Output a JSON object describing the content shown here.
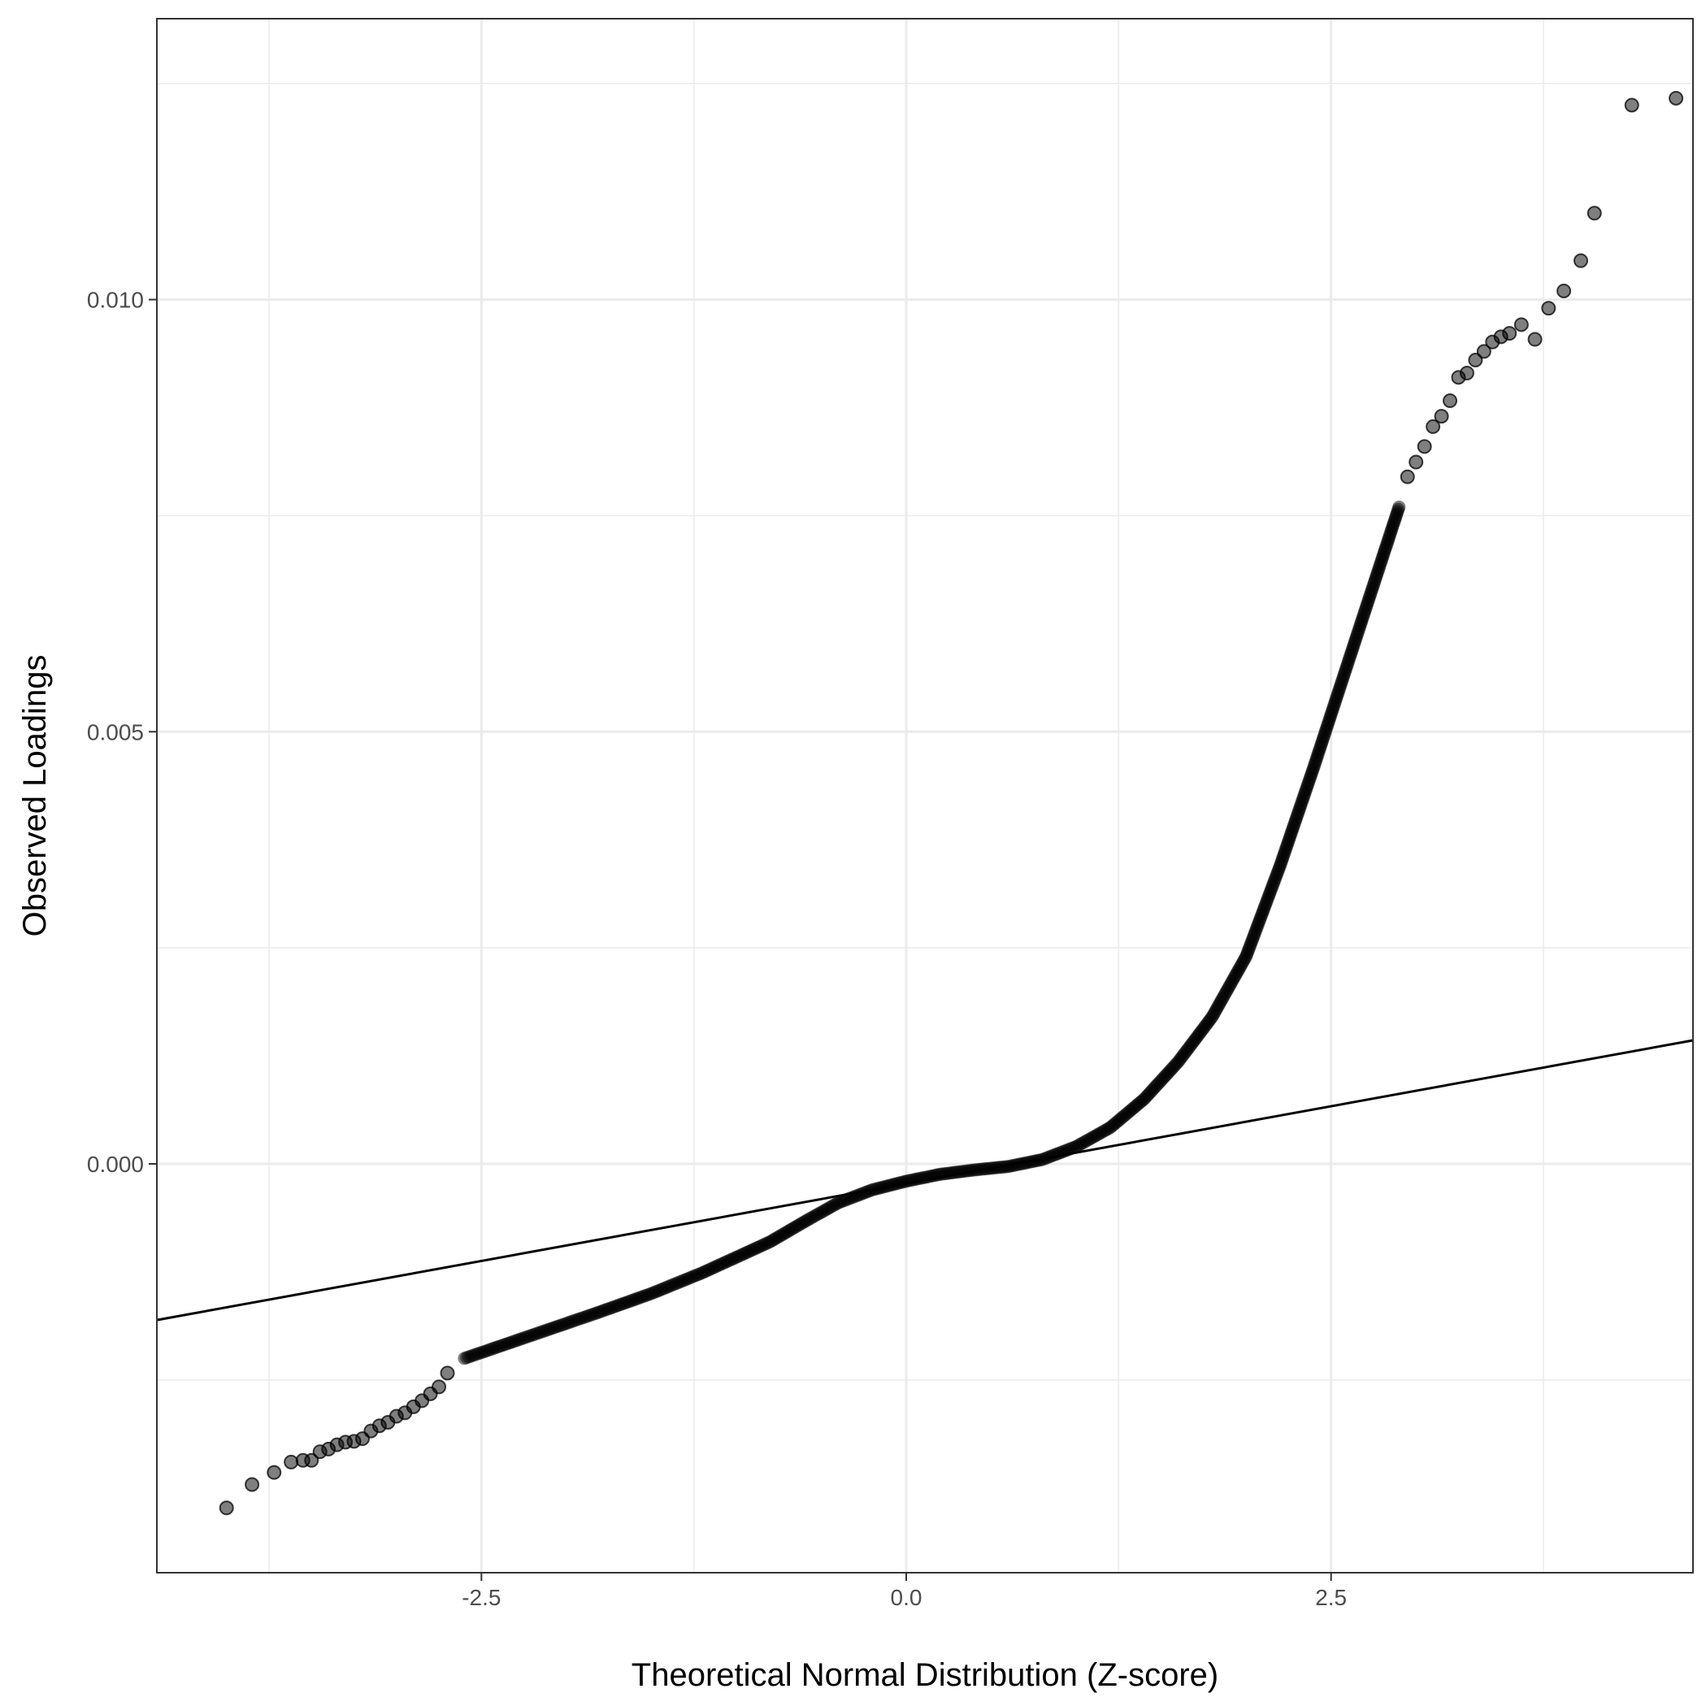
{
  "chart_data": {
    "type": "scatter",
    "title": "",
    "xlabel": "Theoretical Normal Distribution (Z-score)",
    "ylabel": "Observed Loadings",
    "xlim": [
      -4.41,
      4.63
    ],
    "ylim": [
      -0.00473,
      0.01325
    ],
    "x_ticks": [
      {
        "value": -2.5,
        "label": "-2.5"
      },
      {
        "value": 0.0,
        "label": "0.0"
      },
      {
        "value": 2.5,
        "label": "2.5"
      }
    ],
    "y_ticks": [
      {
        "value": 0.0,
        "label": "0.000"
      },
      {
        "value": 0.005,
        "label": "0.005"
      },
      {
        "value": 0.01,
        "label": "0.010"
      }
    ],
    "x_minor": [
      -3.75,
      -1.25,
      1.25,
      3.75
    ],
    "y_minor": [
      -0.0025,
      0.0025,
      0.0075,
      0.0125
    ],
    "grid": true,
    "point_color": "#000000",
    "point_alpha": 0.5,
    "line_color": "#000000",
    "reference_line": {
      "slope": 0.000358,
      "intercept": -0.000228
    },
    "curve": [
      [
        -2.6,
        -0.00225
      ],
      [
        -2.2,
        -0.00198
      ],
      [
        -1.8,
        -0.00171
      ],
      [
        -1.5,
        -0.0015
      ],
      [
        -1.2,
        -0.00126
      ],
      [
        -1.0,
        -0.00108
      ],
      [
        -0.8,
        -0.0009
      ],
      [
        -0.6,
        -0.00067
      ],
      [
        -0.4,
        -0.00045
      ],
      [
        -0.2,
        -0.0003
      ],
      [
        0.0,
        -0.0002
      ],
      [
        0.2,
        -0.00012
      ],
      [
        0.4,
        -7e-05
      ],
      [
        0.6,
        -3e-05
      ],
      [
        0.8,
        5e-05
      ],
      [
        1.0,
        0.0002
      ],
      [
        1.2,
        0.00042
      ],
      [
        1.4,
        0.00075
      ],
      [
        1.6,
        0.00118
      ],
      [
        1.8,
        0.0017
      ],
      [
        2.0,
        0.0024
      ],
      [
        2.2,
        0.00345
      ],
      [
        2.4,
        0.0046
      ],
      [
        2.6,
        0.0058
      ],
      [
        2.8,
        0.007
      ],
      [
        2.9,
        0.0076
      ]
    ],
    "tail_points": [
      [
        -4.0,
        -0.00398
      ],
      [
        -3.85,
        -0.00371
      ],
      [
        -3.72,
        -0.00357
      ],
      [
        -3.62,
        -0.00345
      ],
      [
        -3.55,
        -0.00343
      ],
      [
        -3.5,
        -0.00343
      ],
      [
        -3.45,
        -0.00333
      ],
      [
        -3.4,
        -0.0033
      ],
      [
        -3.35,
        -0.00325
      ],
      [
        -3.3,
        -0.00322
      ],
      [
        -3.25,
        -0.00321
      ],
      [
        -3.2,
        -0.00318
      ],
      [
        -3.15,
        -0.00309
      ],
      [
        -3.1,
        -0.00303
      ],
      [
        -3.05,
        -0.00299
      ],
      [
        -3.0,
        -0.00292
      ],
      [
        -2.95,
        -0.00288
      ],
      [
        -2.9,
        -0.00281
      ],
      [
        -2.85,
        -0.00274
      ],
      [
        -2.8,
        -0.00266
      ],
      [
        -2.75,
        -0.00258
      ],
      [
        -2.7,
        -0.00242
      ],
      [
        2.95,
        0.00795
      ],
      [
        3.0,
        0.00812
      ],
      [
        3.05,
        0.0083
      ],
      [
        3.1,
        0.00853
      ],
      [
        3.15,
        0.00865
      ],
      [
        3.2,
        0.00883
      ],
      [
        3.25,
        0.0091
      ],
      [
        3.3,
        0.00915
      ],
      [
        3.35,
        0.0093
      ],
      [
        3.4,
        0.0094
      ],
      [
        3.45,
        0.00951
      ],
      [
        3.5,
        0.00957
      ],
      [
        3.55,
        0.00961
      ],
      [
        3.62,
        0.00971
      ],
      [
        3.7,
        0.00954
      ],
      [
        3.78,
        0.0099
      ],
      [
        3.87,
        0.0101
      ],
      [
        3.97,
        0.01045
      ],
      [
        4.05,
        0.011
      ],
      [
        4.27,
        0.01225
      ],
      [
        4.53,
        0.01233
      ]
    ]
  }
}
